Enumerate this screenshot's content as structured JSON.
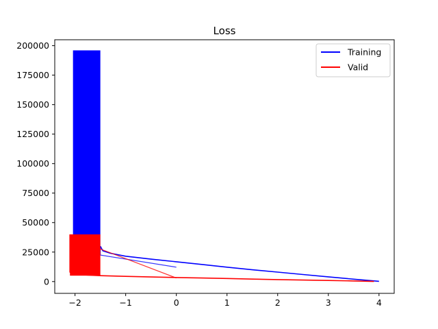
{
  "chart_data": {
    "type": "line",
    "title": "Loss",
    "xlabel": "",
    "ylabel": "",
    "xlim": [
      -2.4,
      4.3
    ],
    "ylim": [
      -10000,
      205000
    ],
    "xticks": [
      -2,
      -1,
      0,
      1,
      2,
      3,
      4
    ],
    "yticks": [
      0,
      25000,
      50000,
      75000,
      100000,
      125000,
      150000,
      175000,
      200000
    ],
    "legend": "top-right",
    "grid": false,
    "series": [
      {
        "name": "Training",
        "color": "#0000ff",
        "band": {
          "x": [
            -2.04,
            -1.5
          ],
          "y": [
            30000,
            196000
          ]
        },
        "points": [
          [
            -1.5,
            30000
          ],
          [
            -1.45,
            26000
          ],
          [
            -1.3,
            24000
          ],
          [
            -1.0,
            21500
          ],
          [
            -0.5,
            19000
          ],
          [
            0,
            16800
          ],
          [
            0.5,
            14500
          ],
          [
            1,
            12200
          ],
          [
            1.5,
            10000
          ],
          [
            2,
            8000
          ],
          [
            2.5,
            6000
          ],
          [
            3,
            4000
          ],
          [
            3.5,
            2000
          ],
          [
            4.0,
            200
          ]
        ]
      },
      {
        "name": "Valid",
        "color": "#ff0000",
        "band": {
          "x": [
            -2.1,
            -1.5
          ],
          "y": [
            5000,
            40000
          ]
        },
        "points": [
          [
            -2.1,
            40000
          ],
          [
            -2.1,
            8000
          ],
          [
            -2.0,
            6000
          ],
          [
            -1.5,
            5000
          ],
          [
            -1.0,
            4400
          ],
          [
            -0.5,
            3900
          ],
          [
            0,
            3400
          ],
          [
            0.5,
            3000
          ],
          [
            1,
            2600
          ],
          [
            1.5,
            2100
          ],
          [
            2,
            1700
          ],
          [
            2.5,
            1300
          ],
          [
            3,
            900
          ],
          [
            3.5,
            500
          ],
          [
            3.9,
            100
          ]
        ]
      }
    ]
  }
}
